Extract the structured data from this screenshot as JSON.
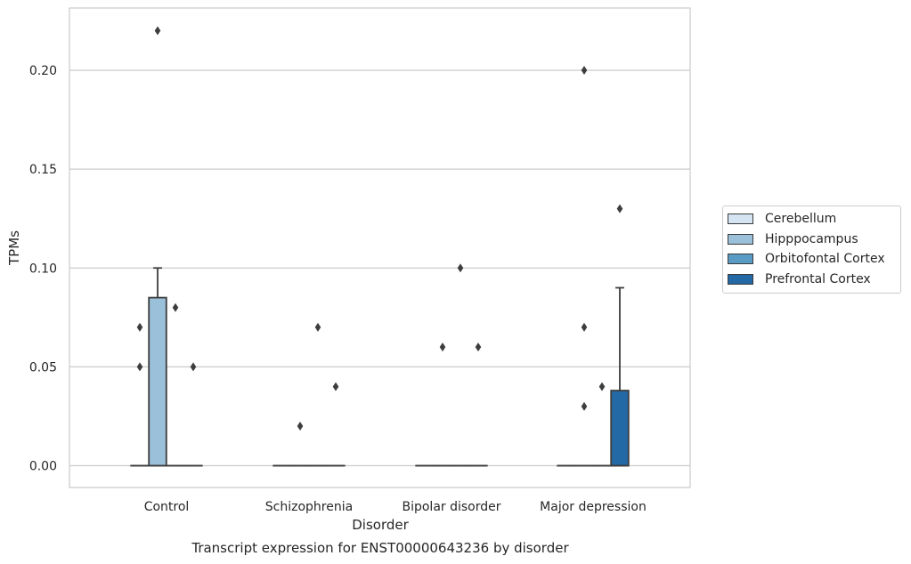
{
  "chart_data": {
    "type": "box",
    "title": "",
    "caption": "Transcript expression for ENST00000643236 by disorder",
    "xlabel": "Disorder",
    "ylabel": "TPMs",
    "ylim": [
      -0.011,
      0.231
    ],
    "yticks": [
      "0.00",
      "0.05",
      "0.10",
      "0.15",
      "0.20"
    ],
    "ytick_values": [
      0.0,
      0.05,
      0.1,
      0.15,
      0.2
    ],
    "grid": true,
    "legend_placement": "center-right outside",
    "categories": [
      "Control",
      "Schizophrenia",
      "Bipolar disorder",
      "Major depression"
    ],
    "series": [
      {
        "name": "Cerebellum",
        "color": "#d4e4f2",
        "boxes": [
          {
            "q1": 0,
            "median": 0,
            "q3": 0,
            "whislo": 0,
            "whishi": 0,
            "fliers": [
              0.07,
              0.05
            ]
          },
          {
            "q1": 0,
            "median": 0,
            "q3": 0,
            "whislo": 0,
            "whishi": 0,
            "fliers": []
          },
          {
            "q1": 0,
            "median": 0,
            "q3": 0,
            "whislo": 0,
            "whishi": 0,
            "fliers": []
          },
          {
            "q1": 0,
            "median": 0,
            "q3": 0,
            "whislo": 0,
            "whishi": 0,
            "fliers": []
          }
        ]
      },
      {
        "name": "Hipppocampus",
        "color": "#9ac0da",
        "boxes": [
          {
            "q1": 0,
            "median": 0,
            "q3": 0.085,
            "whislo": 0,
            "whishi": 0.1,
            "fliers": [
              0.22
            ]
          },
          {
            "q1": 0,
            "median": 0,
            "q3": 0,
            "whislo": 0,
            "whishi": 0,
            "fliers": [
              0.02
            ]
          },
          {
            "q1": 0,
            "median": 0,
            "q3": 0,
            "whislo": 0,
            "whishi": 0,
            "fliers": [
              0.06
            ]
          },
          {
            "q1": 0,
            "median": 0,
            "q3": 0,
            "whislo": 0,
            "whishi": 0,
            "fliers": [
              0.2,
              0.07,
              0.03
            ]
          }
        ]
      },
      {
        "name": "Orbitofontal Cortex",
        "color": "#5a9bc6",
        "boxes": [
          {
            "q1": 0,
            "median": 0,
            "q3": 0,
            "whislo": 0,
            "whishi": 0,
            "fliers": [
              0.08
            ]
          },
          {
            "q1": 0,
            "median": 0,
            "q3": 0,
            "whislo": 0,
            "whishi": 0,
            "fliers": [
              0.07
            ]
          },
          {
            "q1": 0,
            "median": 0,
            "q3": 0,
            "whislo": 0,
            "whishi": 0,
            "fliers": [
              0.1
            ]
          },
          {
            "q1": 0,
            "median": 0,
            "q3": 0,
            "whislo": 0,
            "whishi": 0,
            "fliers": [
              0.04
            ]
          }
        ]
      },
      {
        "name": "Prefrontal Cortex",
        "color": "#2369a5",
        "boxes": [
          {
            "q1": 0,
            "median": 0,
            "q3": 0,
            "whislo": 0,
            "whishi": 0,
            "fliers": [
              0.05
            ]
          },
          {
            "q1": 0,
            "median": 0,
            "q3": 0,
            "whislo": 0,
            "whishi": 0,
            "fliers": [
              0.04
            ]
          },
          {
            "q1": 0,
            "median": 0,
            "q3": 0,
            "whislo": 0,
            "whishi": 0,
            "fliers": [
              0.06
            ]
          },
          {
            "q1": 0,
            "median": 0,
            "q3": 0.038,
            "whislo": 0,
            "whishi": 0.09,
            "fliers": [
              0.13
            ]
          }
        ]
      }
    ]
  }
}
